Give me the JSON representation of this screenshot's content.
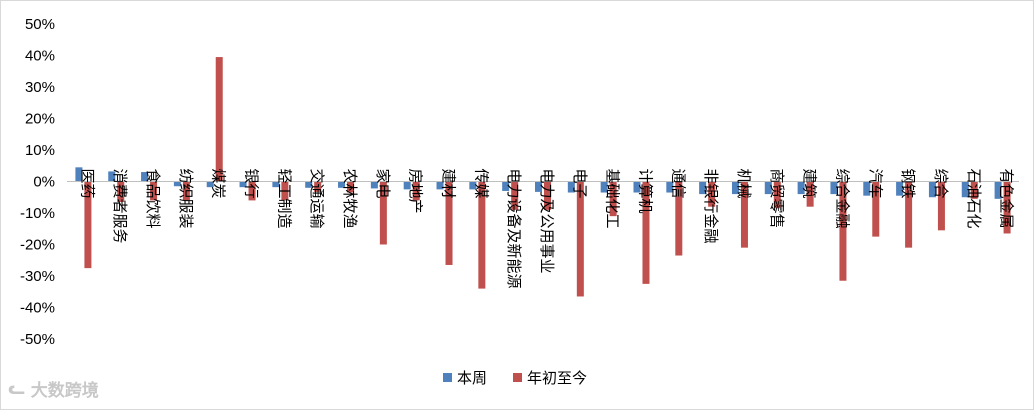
{
  "chart_data": {
    "type": "bar",
    "categories": [
      "医药",
      "消费者服务",
      "食品饮料",
      "纺织服装",
      "煤炭",
      "银行",
      "轻工制造",
      "交通运输",
      "农林牧渔",
      "家电",
      "房地产",
      "建材",
      "传媒",
      "电力设备及新能源",
      "电力及公用事业",
      "电子",
      "基础化工",
      "计算机",
      "通信",
      "非银行金融",
      "机械",
      "商贸零售",
      "建筑",
      "综合金融",
      "汽车",
      "钢铁",
      "综合",
      "石油石化",
      "有色金属"
    ],
    "series": [
      {
        "name": "本周",
        "color": "#4f81bd",
        "values": [
          4.5,
          3.2,
          3.0,
          -1.5,
          -1.8,
          -1.8,
          -1.8,
          -2.0,
          -2.0,
          -2.2,
          -2.5,
          -2.5,
          -2.5,
          -3.0,
          -3.3,
          -3.5,
          -3.5,
          -3.5,
          -3.5,
          -4.0,
          -4.0,
          -4.0,
          -4.0,
          -4.0,
          -4.5,
          -4.5,
          -5.0,
          -5.0,
          -5.5
        ]
      },
      {
        "name": "年初至今",
        "color": "#c0504d",
        "values": [
          -27.5,
          -6.5,
          -6.0,
          -6.0,
          39.5,
          -6.0,
          -6.0,
          -3.3,
          -3.5,
          -20.0,
          -6.0,
          -26.5,
          -34.0,
          -9.0,
          -9.0,
          -36.5,
          -11.0,
          -32.5,
          -23.5,
          -8.0,
          -21.0,
          -8.5,
          -8.0,
          -31.5,
          -17.5,
          -21.0,
          -15.5,
          -5.5,
          -16.5
        ]
      }
    ],
    "ylim": [
      -50,
      50
    ],
    "yticks": [
      "50%",
      "40%",
      "30%",
      "20%",
      "10%",
      "0%",
      "-10%",
      "-20%",
      "-30%",
      "-40%",
      "-50%"
    ],
    "grid": false,
    "legend": "bottom-center",
    "title": "",
    "xlabel": "",
    "ylabel": ""
  },
  "watermark": "大数跨境"
}
